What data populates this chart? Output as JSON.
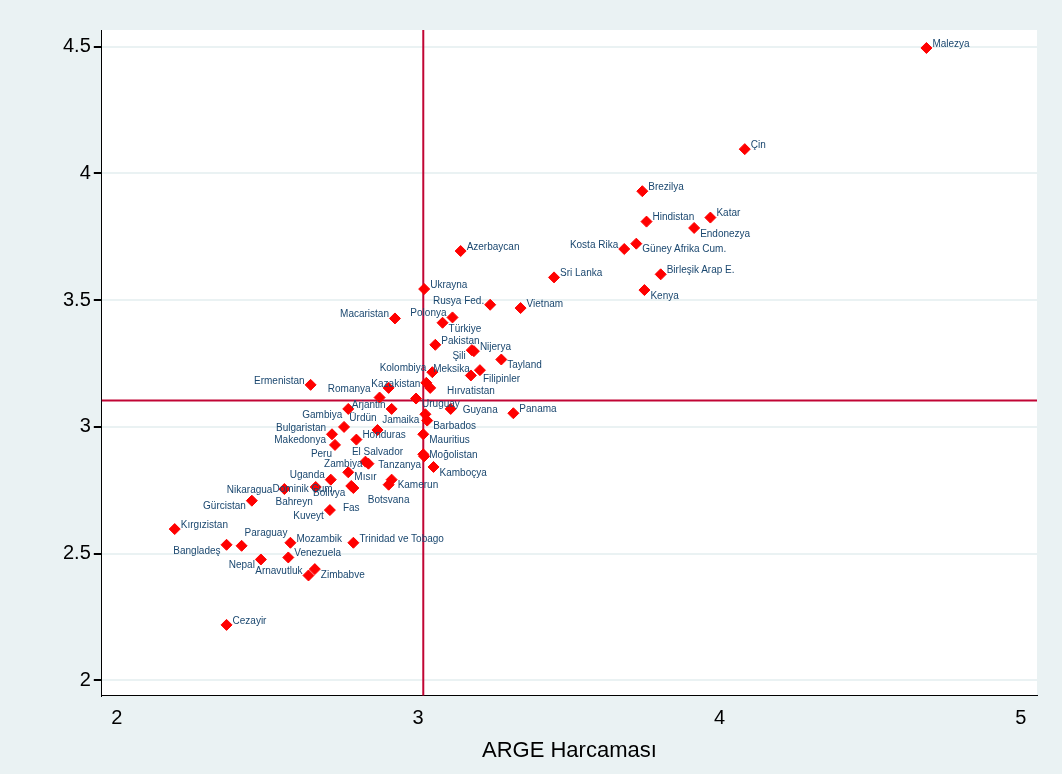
{
  "chart_data": {
    "type": "scatter",
    "xlabel": "ARGE Harcaması",
    "xlim": [
      1.95,
      5.054
    ],
    "ylim": [
      1.94,
      4.566
    ],
    "xticks": [
      2,
      3,
      4,
      5
    ],
    "yticks": [
      2,
      2.5,
      3,
      3.5,
      4,
      4.5
    ],
    "grid": "y",
    "legend": false,
    "marker": "diamond",
    "ref_lines": [
      {
        "axis": "x",
        "value": 3.017,
        "color": "#c10534"
      },
      {
        "axis": "y",
        "value": 3.104,
        "color": "#c10534"
      }
    ],
    "series": [
      {
        "color": "#ff0000",
        "x": [
          4.687,
          4.084,
          3.744,
          3.97,
          3.758,
          3.916,
          3.724,
          3.684,
          3.141,
          3.805,
          3.451,
          3.751,
          3.02,
          3.239,
          3.34,
          2.923,
          3.081,
          3.114,
          3.057,
          3.178,
          3.185,
          3.276,
          3.205,
          3.175,
          3.047,
          3.027,
          3.04,
          2.902,
          2.872,
          2.993,
          2.643,
          2.768,
          2.912,
          3.024,
          3.03,
          3.108,
          3.316,
          2.754,
          2.714,
          2.865,
          2.795,
          2.724,
          3.017,
          3.017,
          3.02,
          2.825,
          2.835,
          3.051,
          2.768,
          2.912,
          2.902,
          2.71,
          2.66,
          2.778,
          2.785,
          2.556,
          2.448,
          2.707,
          2.192,
          2.364,
          2.414,
          2.576,
          2.785,
          2.478,
          2.569,
          2.657,
          2.636,
          2.364
        ],
        "values": [
          4.495,
          4.096,
          3.93,
          3.826,
          3.81,
          3.785,
          3.723,
          3.702,
          3.694,
          3.602,
          3.59,
          3.54,
          3.544,
          3.482,
          3.469,
          3.428,
          3.411,
          3.432,
          3.324,
          3.303,
          3.299,
          3.266,
          3.224,
          3.203,
          3.216,
          3.174,
          3.154,
          3.154,
          3.116,
          3.112,
          3.166,
          3.071,
          3.071,
          3.05,
          3.025,
          3.071,
          3.054,
          3.0,
          2.971,
          2.988,
          2.95,
          2.929,
          2.971,
          2.892,
          2.884,
          2.863,
          2.855,
          2.842,
          2.821,
          2.792,
          2.772,
          2.792,
          2.763,
          2.767,
          2.759,
          2.755,
          2.709,
          2.672,
          2.597,
          2.535,
          2.531,
          2.543,
          2.543,
          2.477,
          2.485,
          2.439,
          2.414,
          2.219
        ],
        "value_labels": [
          "Malezya",
          "Çin",
          "Brezilya",
          "Katar",
          "Hindistan",
          "Endonezya",
          "Güney Afrika Cum.",
          "Kosta Rika",
          "Azerbaycan",
          "Birleşik Arap E.",
          "Sri Lanka",
          "Kenya",
          "Ukrayna",
          "Rusya Fed.",
          "Vietnam",
          "Macaristan",
          "Türkiye",
          "Polonya",
          "Pakistan",
          "Şili",
          "Nijerya",
          "Tayland",
          "Filipinler",
          "Hırvatistan",
          "Kolombiya",
          "Kazakistan",
          "Meksika",
          "Romanya",
          "Ürdün",
          "Uruguay",
          "Ermenistan",
          "Gambiya",
          "Arjantin",
          "Jamaika",
          "Barbados",
          "Guyana",
          "Panama",
          "Bulgaristan",
          "Makedonya",
          "El Salvador",
          "Honduras",
          "Peru",
          "Mauritius",
          "Moğolistan",
          "Tanzanya",
          "Mısır",
          "Zambiya",
          "Kamboçya",
          "Bolivya",
          "Kamerun",
          "Botsvana",
          "Uganda",
          "Bahreyn",
          "Fas",
          "Dominik Cum.",
          "Nikaragua",
          "Gürcistan",
          "Kuveyt",
          "Kırgızistan",
          "Bangladeş",
          "Paraguay",
          "Mozambik",
          "Trinidad ve Tobago",
          "Nepal",
          "Venezuela",
          "Zimbabve",
          "Arnavutluk",
          "Cezayir"
        ]
      }
    ]
  }
}
